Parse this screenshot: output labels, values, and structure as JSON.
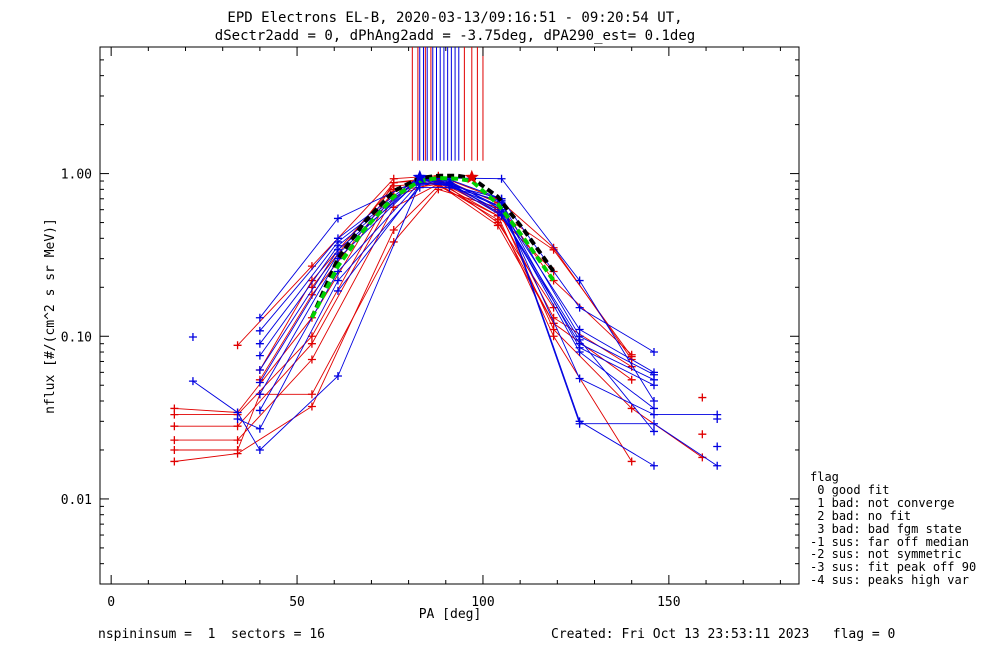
{
  "chart_data": {
    "type": "line",
    "title_line1": "EPD Electrons EL-B, 2020-03-13/09:16:51 - 09:20:54 UT,",
    "title_line2": "dSectr2add = 0, dPhAng2add = -3.75deg, dPA290_est=   0.1deg",
    "xlabel": "PA [deg]",
    "ylabel": "nflux [#/(cm^2 s sr MeV)]",
    "xlim": [
      -3,
      185
    ],
    "ylim": [
      0.003,
      6.0
    ],
    "ylog": true,
    "xticks": [
      0,
      50,
      100,
      150
    ],
    "xtick_labels": [
      "0",
      "50",
      "100",
      "150"
    ],
    "yticks": [
      0.01,
      0.1,
      1.0
    ],
    "ytick_labels": [
      "0.01",
      "0.10",
      "1.00"
    ],
    "red_vlines": [
      81,
      82.5,
      84.5,
      86,
      95,
      97,
      98.5,
      100
    ],
    "blue_vlines": [
      83,
      84,
      85,
      86.5,
      87.5,
      88.5,
      89.5,
      90.5,
      91.5,
      92.5,
      93.5
    ],
    "series": [
      {
        "color": "red",
        "x": [
          17,
          34,
          54,
          76,
          88,
          104,
          119,
          140
        ],
        "y": [
          0.017,
          0.019,
          0.037,
          0.45,
          0.84,
          0.55,
          0.1,
          0.017
        ]
      },
      {
        "color": "red",
        "x": [
          17,
          34,
          40,
          54,
          76,
          88,
          104,
          119,
          140,
          159
        ],
        "y": [
          0.02,
          0.02,
          0.044,
          0.044,
          0.38,
          0.8,
          0.62,
          0.11,
          0.036,
          0.018
        ]
      },
      {
        "color": "red",
        "x": [
          17,
          34,
          54,
          76,
          88,
          104,
          119,
          140
        ],
        "y": [
          0.023,
          0.023,
          0.072,
          0.62,
          0.86,
          0.52,
          0.12,
          0.054
        ]
      },
      {
        "color": "red",
        "x": [
          17,
          34,
          54,
          76,
          88,
          104,
          119,
          140
        ],
        "y": [
          0.028,
          0.028,
          0.09,
          0.72,
          0.9,
          0.58,
          0.34,
          0.075
        ]
      },
      {
        "color": "red",
        "x": [
          17,
          34,
          54,
          76,
          88,
          104,
          119,
          140
        ],
        "y": [
          0.033,
          0.033,
          0.1,
          0.8,
          0.92,
          0.6,
          0.13,
          0.065
        ]
      },
      {
        "color": "red",
        "x": [
          17,
          34,
          54,
          76,
          88,
          104,
          119,
          140
        ],
        "y": [
          0.036,
          0.034,
          0.13,
          0.88,
          0.95,
          0.66,
          0.22,
          0.077
        ]
      },
      {
        "color": "red",
        "x": [
          34,
          54,
          76,
          88,
          104,
          119,
          140
        ],
        "y": [
          0.088,
          0.27,
          0.93,
          0.97,
          0.7,
          0.35,
          0.072
        ]
      },
      {
        "color": "red",
        "x": [
          40,
          54,
          76,
          88,
          104,
          119
        ],
        "y": [
          0.062,
          0.22,
          0.84,
          0.88,
          0.55,
          0.25
        ]
      },
      {
        "color": "red",
        "x": [
          40,
          54,
          76,
          88,
          104,
          119
        ],
        "y": [
          0.054,
          0.18,
          0.78,
          0.86,
          0.48,
          0.12
        ]
      },
      {
        "color": "red",
        "x": [
          54,
          76,
          88,
          104,
          119
        ],
        "y": [
          0.2,
          0.88,
          0.92,
          0.5,
          0.15
        ]
      },
      {
        "color": "blue",
        "x": [
          22,
          34,
          40,
          61,
          83,
          91,
          105,
          126,
          146
        ],
        "y": [
          0.053,
          0.034,
          0.02,
          0.057,
          0.87,
          0.85,
          0.7,
          0.03,
          0.016
        ]
      },
      {
        "color": "blue",
        "x": [
          34,
          40,
          61,
          83,
          91,
          105,
          126,
          146,
          163
        ],
        "y": [
          0.031,
          0.027,
          0.22,
          0.82,
          0.82,
          0.68,
          0.029,
          0.029,
          0.016
        ]
      },
      {
        "color": "blue",
        "x": [
          40,
          61,
          83,
          91,
          105,
          126,
          146,
          163
        ],
        "y": [
          0.035,
          0.25,
          0.88,
          0.84,
          0.62,
          0.055,
          0.033,
          0.033
        ]
      },
      {
        "color": "blue",
        "x": [
          40,
          61,
          83,
          91,
          105,
          126,
          146
        ],
        "y": [
          0.044,
          0.3,
          0.92,
          0.86,
          0.58,
          0.08,
          0.036
        ]
      },
      {
        "color": "blue",
        "x": [
          40,
          61,
          83,
          91,
          105,
          126,
          146
        ],
        "y": [
          0.052,
          0.32,
          0.95,
          0.88,
          0.62,
          0.085,
          0.05
        ]
      },
      {
        "color": "blue",
        "x": [
          40,
          61,
          83,
          91,
          105,
          126,
          146
        ],
        "y": [
          0.062,
          0.34,
          0.9,
          0.85,
          0.55,
          0.09,
          0.054
        ]
      },
      {
        "color": "blue",
        "x": [
          40,
          61,
          83,
          91,
          105,
          126,
          146
        ],
        "y": [
          0.076,
          0.36,
          0.93,
          0.87,
          0.66,
          0.1,
          0.058
        ]
      },
      {
        "color": "blue",
        "x": [
          40,
          61,
          83,
          91,
          105,
          126,
          146
        ],
        "y": [
          0.09,
          0.38,
          0.94,
          0.9,
          0.6,
          0.11,
          0.06
        ]
      },
      {
        "color": "blue",
        "x": [
          40,
          61,
          83,
          91,
          105,
          126,
          146
        ],
        "y": [
          0.108,
          0.4,
          0.96,
          0.92,
          0.7,
          0.15,
          0.08
        ]
      },
      {
        "color": "blue",
        "x": [
          40,
          61,
          83,
          91,
          105,
          126,
          146
        ],
        "y": [
          0.13,
          0.53,
          0.92,
          0.94,
          0.93,
          0.22,
          0.04
        ]
      },
      {
        "color": "blue",
        "x": [
          61,
          83,
          91,
          105,
          126,
          146
        ],
        "y": [
          0.19,
          0.85,
          0.88,
          0.56,
          0.095,
          0.026
        ]
      }
    ],
    "extra_points": [
      {
        "color": "blue",
        "x": 22,
        "y": 0.099
      },
      {
        "color": "red",
        "x": 159,
        "y": 0.042
      },
      {
        "color": "red",
        "x": 159,
        "y": 0.025
      },
      {
        "color": "blue",
        "x": 163,
        "y": 0.031
      },
      {
        "color": "blue",
        "x": 163,
        "y": 0.021
      }
    ],
    "fit_curves": [
      {
        "color": "black",
        "style": "dashed",
        "x": [
          54,
          61,
          68,
          76,
          83,
          88,
          93,
          97,
          104,
          111,
          119
        ],
        "y": [
          0.13,
          0.3,
          0.5,
          0.78,
          0.94,
          0.97,
          0.97,
          0.94,
          0.72,
          0.45,
          0.25
        ]
      },
      {
        "color": "green",
        "style": "dashed",
        "x": [
          54,
          61,
          68,
          76,
          83,
          88,
          93,
          97,
          104,
          111,
          119
        ],
        "y": [
          0.13,
          0.27,
          0.45,
          0.72,
          0.9,
          0.94,
          0.93,
          0.9,
          0.65,
          0.4,
          0.22
        ]
      }
    ],
    "peak_markers": [
      {
        "color": "blue",
        "x": 83,
        "y": 0.95
      },
      {
        "color": "red",
        "x": 97,
        "y": 0.95
      }
    ]
  },
  "legend": {
    "lines": [
      "flag",
      " 0 good fit",
      " 1 bad: not converge",
      " 2 bad: no fit",
      " 3 bad: bad fgm state",
      "-1 sus: far off median",
      "-2 sus: not symmetric",
      "-3 sus: fit peak off 90",
      "-4 sus: peaks high var"
    ]
  },
  "footer": {
    "left": "nspininsum =  1  sectors = 16",
    "right": "Created: Fri Oct 13 23:53:11 2023   flag = 0"
  }
}
